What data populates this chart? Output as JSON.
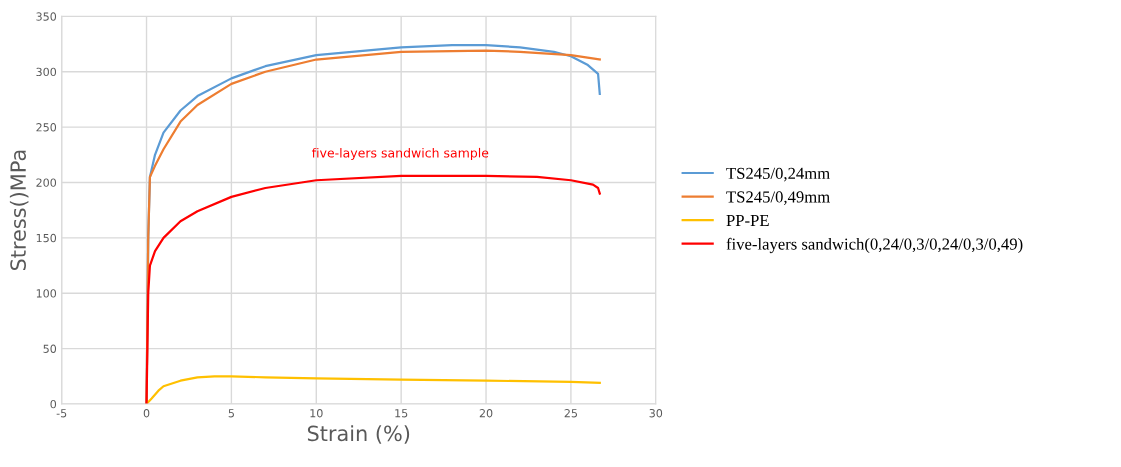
{
  "chart_data": {
    "type": "line",
    "xlabel": "Strain (%)",
    "ylabel": "Stress()MPa",
    "xlim": [
      -5,
      30
    ],
    "ylim": [
      0,
      350
    ],
    "xticks": [
      -5,
      0,
      5,
      10,
      15,
      20,
      25,
      30
    ],
    "yticks": [
      0,
      50,
      100,
      150,
      200,
      250,
      300,
      350
    ],
    "grid": true,
    "legend": "right",
    "marker": "none",
    "line_style": "solid",
    "annotations": [
      "five-layers sandwich sample"
    ],
    "series": [
      {
        "name": "TS245/0,24mm",
        "color": "#5b9bd5",
        "x": [
          0,
          0.1,
          0.2,
          0.5,
          1,
          2,
          3,
          5,
          7,
          10,
          15,
          18,
          20,
          22,
          24,
          25,
          26,
          26.6,
          26.7
        ],
        "values": [
          0,
          150,
          205,
          225,
          245,
          265,
          278,
          294,
          305,
          315,
          322,
          324,
          324,
          322,
          318,
          314,
          306,
          298,
          280
        ]
      },
      {
        "name": "TS245/0,49mm",
        "color": "#ed7d31",
        "x": [
          0,
          0.1,
          0.2,
          0.5,
          1,
          2,
          3,
          5,
          7,
          10,
          15,
          20,
          22,
          25,
          26.7
        ],
        "values": [
          0,
          150,
          205,
          215,
          230,
          255,
          270,
          289,
          300,
          311,
          318,
          319,
          318,
          315,
          311
        ]
      },
      {
        "name": "PP-PE",
        "color": "#ffc000",
        "x": [
          0,
          0.3,
          0.7,
          1,
          2,
          3,
          4,
          5,
          7,
          10,
          15,
          20,
          25,
          26.7
        ],
        "values": [
          0,
          5,
          12,
          16,
          21,
          24,
          25,
          25,
          24,
          23,
          22,
          21,
          20,
          19
        ]
      },
      {
        "name": "five-layers sandwich(0,24/0,3/0,24/0,3/0,49)",
        "color": "#ff0000",
        "x": [
          0,
          0.05,
          0.1,
          0.2,
          0.5,
          1,
          2,
          3,
          5,
          7,
          10,
          15,
          20,
          23,
          25,
          26.3,
          26.6,
          26.7
        ],
        "values": [
          0,
          50,
          100,
          125,
          138,
          150,
          165,
          174,
          187,
          195,
          202,
          206,
          206,
          205,
          202,
          198,
          195,
          190
        ]
      }
    ]
  }
}
